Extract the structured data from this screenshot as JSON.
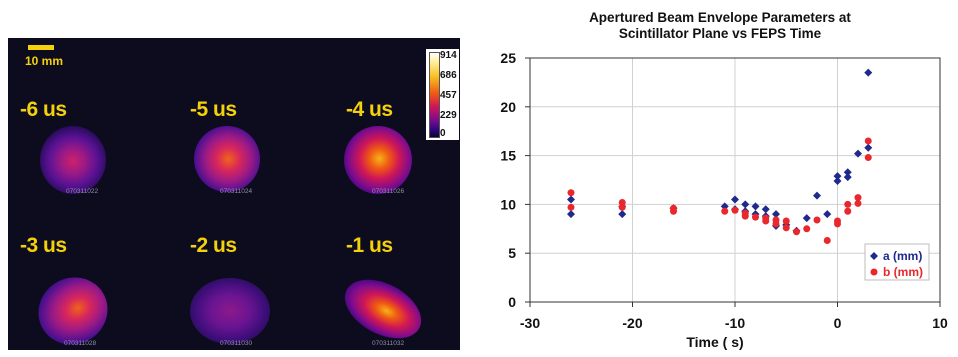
{
  "image_panel": {
    "scale_label": "10 mm",
    "colorbar_ticks": [
      "914",
      "686",
      "457",
      "229",
      "0"
    ],
    "frames": [
      {
        "time_label": "-6 us",
        "shot_id": "070311022"
      },
      {
        "time_label": "-5 us",
        "shot_id": "070311024"
      },
      {
        "time_label": "-4 us",
        "shot_id": "070311026"
      },
      {
        "time_label": "-3 us",
        "shot_id": "070311028"
      },
      {
        "time_label": "-2 us",
        "shot_id": "070311030"
      },
      {
        "time_label": "-1 us",
        "shot_id": "070311032"
      }
    ]
  },
  "chart_data": {
    "type": "scatter",
    "title": "Apertured Beam Envelope Parameters at Scintillator Plane vs FEPS Time",
    "title_lines": [
      "Apertured Beam Envelope Parameters at",
      "Scintillator Plane vs FEPS Time"
    ],
    "xlabel": "Time ( s)",
    "ylabel": "",
    "xlim": [
      -30,
      10
    ],
    "ylim": [
      0,
      25
    ],
    "x_ticks": [
      -30,
      -20,
      -10,
      0,
      10
    ],
    "y_ticks": [
      0,
      5,
      10,
      15,
      20,
      25
    ],
    "grid": true,
    "legend_position": "bottom-right",
    "series": [
      {
        "name": "a (mm)",
        "color": "#1f2a8c",
        "marker": "diamond",
        "points": [
          [
            -26,
            9.0
          ],
          [
            -26,
            10.5
          ],
          [
            -21,
            9.0
          ],
          [
            -21,
            9.8
          ],
          [
            -16,
            9.6
          ],
          [
            -11,
            9.8
          ],
          [
            -10,
            10.5
          ],
          [
            -10,
            9.5
          ],
          [
            -9,
            10.0
          ],
          [
            -9,
            9.3
          ],
          [
            -8,
            9.8
          ],
          [
            -8,
            9.0
          ],
          [
            -7,
            9.5
          ],
          [
            -7,
            8.8
          ],
          [
            -6,
            9.0
          ],
          [
            -6,
            7.8
          ],
          [
            -5,
            7.9
          ],
          [
            -4,
            7.3
          ],
          [
            -3,
            8.6
          ],
          [
            -2,
            10.9
          ],
          [
            -1,
            9.0
          ],
          [
            0,
            12.4
          ],
          [
            0,
            12.9
          ],
          [
            1,
            12.8
          ],
          [
            1,
            13.3
          ],
          [
            2,
            15.2
          ],
          [
            3,
            15.8
          ],
          [
            3,
            23.5
          ]
        ]
      },
      {
        "name": "b (mm)",
        "color": "#e8282d",
        "marker": "circle",
        "points": [
          [
            -26,
            11.2
          ],
          [
            -26,
            9.7
          ],
          [
            -21,
            10.2
          ],
          [
            -21,
            9.7
          ],
          [
            -16,
            9.6
          ],
          [
            -16,
            9.3
          ],
          [
            -11,
            9.3
          ],
          [
            -10,
            9.4
          ],
          [
            -9,
            8.8
          ],
          [
            -9,
            9.1
          ],
          [
            -8,
            8.7
          ],
          [
            -7,
            8.6
          ],
          [
            -7,
            8.3
          ],
          [
            -6,
            8.4
          ],
          [
            -6,
            8.0
          ],
          [
            -5,
            8.3
          ],
          [
            -5,
            7.6
          ],
          [
            -4,
            7.2
          ],
          [
            -3,
            7.5
          ],
          [
            -2,
            8.4
          ],
          [
            -1,
            6.3
          ],
          [
            0,
            8.0
          ],
          [
            0,
            8.3
          ],
          [
            1,
            9.3
          ],
          [
            1,
            10.0
          ],
          [
            2,
            10.7
          ],
          [
            2,
            10.1
          ],
          [
            3,
            16.5
          ],
          [
            3,
            14.8
          ]
        ]
      }
    ]
  }
}
